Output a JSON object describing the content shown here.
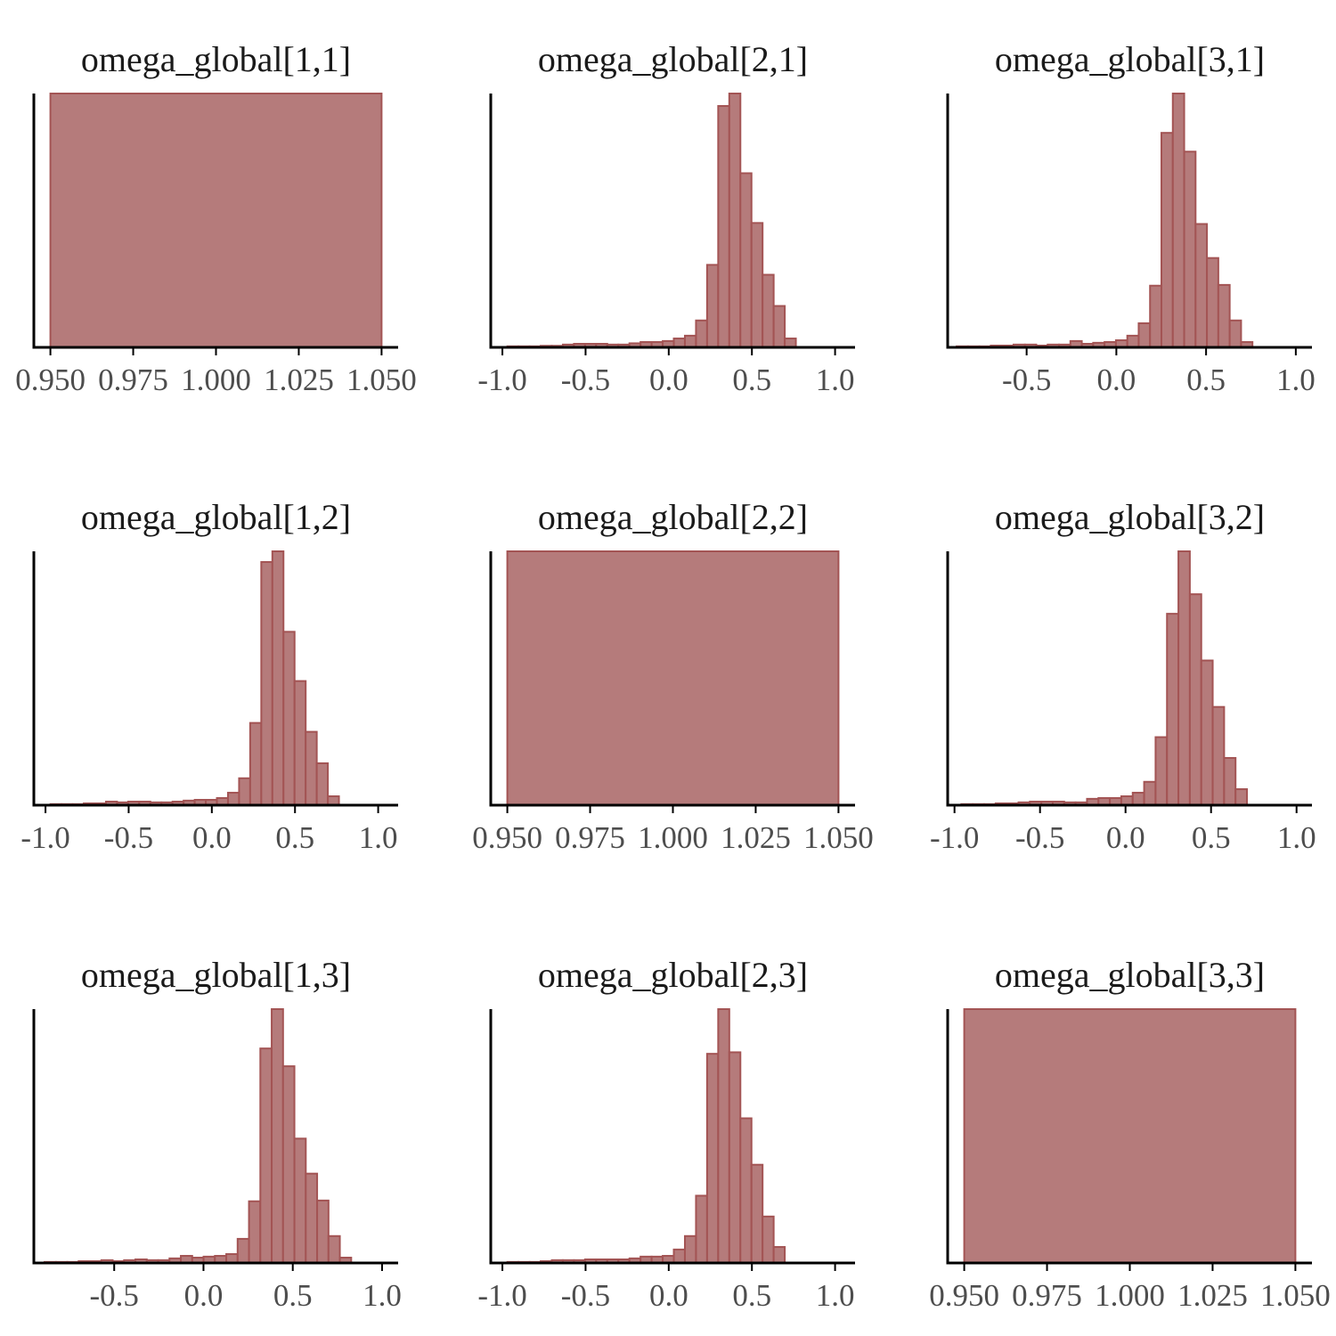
{
  "chart_data": [
    {
      "type": "bar",
      "title": "omega_global[1,1]",
      "xlim": [
        0.945,
        1.055
      ],
      "x_ticks": [
        0.95,
        0.975,
        1.0,
        1.025,
        1.05
      ],
      "x_tick_labels": [
        "0.950",
        "0.975",
        "1.000",
        "1.025",
        "1.050"
      ],
      "bins": [
        {
          "x0": 0.95,
          "x1": 1.05,
          "height": 1.0
        }
      ]
    },
    {
      "type": "bar",
      "title": "omega_global[2,1]",
      "xlim": [
        -1.07,
        1.12
      ],
      "x_ticks": [
        -1.0,
        -0.5,
        0.0,
        0.5,
        1.0
      ],
      "x_tick_labels": [
        "-1.0",
        "-0.5",
        "0.0",
        "0.5",
        "1.0"
      ],
      "bin_start": -0.97,
      "bin_width": 0.0667,
      "heights": [
        0.004,
        0.004,
        0.004,
        0.006,
        0.006,
        0.011,
        0.014,
        0.014,
        0.014,
        0.011,
        0.011,
        0.016,
        0.021,
        0.021,
        0.025,
        0.035,
        0.046,
        0.106,
        0.325,
        0.951,
        1.0,
        0.686,
        0.49,
        0.286,
        0.163,
        0.035
      ]
    },
    {
      "type": "bar",
      "title": "omega_global[3,1]",
      "xlim": [
        -0.94,
        1.09
      ],
      "x_ticks": [
        -0.5,
        0.0,
        0.5,
        1.0
      ],
      "x_tick_labels": [
        "-0.5",
        "0.0",
        "0.5",
        "1.0"
      ],
      "bin_start": -0.89,
      "bin_width": 0.0634,
      "heights": [
        0.004,
        0.004,
        0.004,
        0.007,
        0.007,
        0.011,
        0.011,
        0.007,
        0.011,
        0.011,
        0.025,
        0.014,
        0.018,
        0.021,
        0.028,
        0.046,
        0.095,
        0.243,
        0.845,
        1.0,
        0.771,
        0.486,
        0.352,
        0.246,
        0.106,
        0.021
      ]
    },
    {
      "type": "bar",
      "title": "omega_global[1,2]",
      "xlim": [
        -1.07,
        1.12
      ],
      "x_ticks": [
        -1.0,
        -0.5,
        0.0,
        0.5,
        1.0
      ],
      "x_tick_labels": [
        "-1.0",
        "-0.5",
        "0.0",
        "0.5",
        "1.0"
      ],
      "bin_start": -0.97,
      "bin_width": 0.0667,
      "heights": [
        0.004,
        0.004,
        0.004,
        0.007,
        0.007,
        0.014,
        0.011,
        0.014,
        0.014,
        0.011,
        0.011,
        0.014,
        0.018,
        0.021,
        0.021,
        0.028,
        0.049,
        0.106,
        0.324,
        0.958,
        1.0,
        0.683,
        0.489,
        0.289,
        0.165,
        0.035
      ]
    },
    {
      "type": "bar",
      "title": "omega_global[2,2]",
      "xlim": [
        0.945,
        1.055
      ],
      "x_ticks": [
        0.95,
        0.975,
        1.0,
        1.025,
        1.05
      ],
      "x_tick_labels": [
        "0.950",
        "0.975",
        "1.000",
        "1.025",
        "1.050"
      ],
      "bins": [
        {
          "x0": 0.95,
          "x1": 1.05,
          "height": 1.0
        }
      ]
    },
    {
      "type": "bar",
      "title": "omega_global[3,2]",
      "xlim": [
        -1.04,
        1.09
      ],
      "x_ticks": [
        -1.0,
        -0.5,
        0.0,
        0.5,
        1.0
      ],
      "x_tick_labels": [
        "-1.0",
        "-0.5",
        "0.0",
        "0.5",
        "1.0"
      ],
      "bin_start": -0.96,
      "bin_width": 0.0668,
      "heights": [
        0.004,
        0.004,
        0.004,
        0.007,
        0.007,
        0.011,
        0.014,
        0.014,
        0.014,
        0.011,
        0.011,
        0.025,
        0.028,
        0.028,
        0.035,
        0.049,
        0.092,
        0.268,
        0.754,
        1.0,
        0.831,
        0.57,
        0.387,
        0.186,
        0.063
      ]
    },
    {
      "type": "bar",
      "title": "omega_global[1,3]",
      "xlim": [
        -0.95,
        1.09
      ],
      "x_ticks": [
        -0.5,
        0.0,
        0.5,
        1.0
      ],
      "x_tick_labels": [
        "-0.5",
        "0.0",
        "0.5",
        "1.0"
      ],
      "bin_start": -0.89,
      "bin_width": 0.0636,
      "heights": [
        0.004,
        0.004,
        0.004,
        0.007,
        0.007,
        0.011,
        0.007,
        0.011,
        0.014,
        0.011,
        0.011,
        0.018,
        0.028,
        0.021,
        0.025,
        0.028,
        0.035,
        0.095,
        0.243,
        0.845,
        1.0,
        0.775,
        0.49,
        0.352,
        0.246,
        0.106,
        0.021
      ]
    },
    {
      "type": "bar",
      "title": "omega_global[2,3]",
      "xlim": [
        -1.07,
        1.12
      ],
      "x_ticks": [
        -1.0,
        -0.5,
        0.0,
        0.5,
        1.0
      ],
      "x_tick_labels": [
        "-1.0",
        "-0.5",
        "0.0",
        "0.5",
        "1.0"
      ],
      "bin_start": -0.97,
      "bin_width": 0.0667,
      "heights": [
        0.004,
        0.004,
        0.004,
        0.007,
        0.011,
        0.011,
        0.011,
        0.014,
        0.014,
        0.014,
        0.014,
        0.018,
        0.025,
        0.025,
        0.028,
        0.053,
        0.106,
        0.265,
        0.824,
        1.0,
        0.83,
        0.57,
        0.387,
        0.183,
        0.063
      ]
    },
    {
      "type": "bar",
      "title": "omega_global[3,3]",
      "xlim": [
        0.945,
        1.055
      ],
      "x_ticks": [
        0.95,
        0.975,
        1.0,
        1.025,
        1.05
      ],
      "x_tick_labels": [
        "0.950",
        "0.975",
        "1.000",
        "1.025",
        "1.050"
      ],
      "bins": [
        {
          "x0": 0.95,
          "x1": 1.05,
          "height": 1.0
        }
      ]
    }
  ],
  "style": {
    "bar_fill": "#b57b7b",
    "bar_stroke": "#a35454",
    "axis_color": "#000000",
    "tick_label_color": "#4d4d4d",
    "title_color": "#1a1a1a"
  }
}
